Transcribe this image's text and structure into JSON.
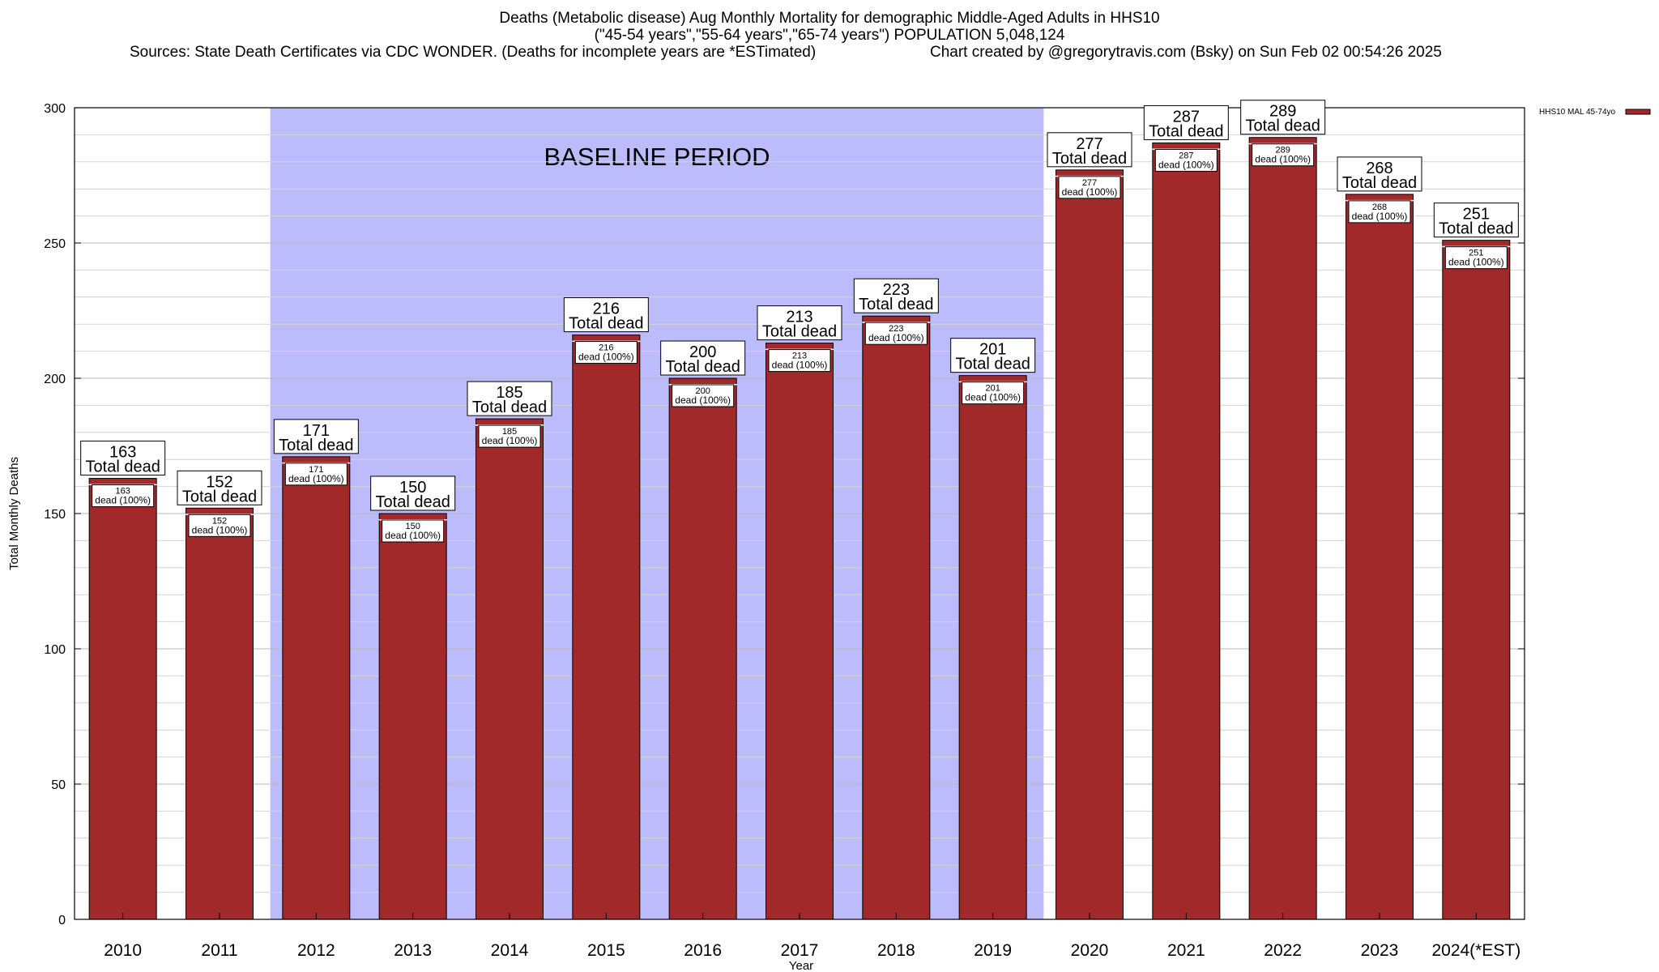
{
  "title": {
    "line1": "Deaths (Metabolic disease) Aug Monthly Mortality for demographic Middle-Aged Adults in HHS10",
    "line2": "(\"45-54 years\",\"55-64 years\",\"65-74 years\") POPULATION 5,048,124",
    "line3_source": "Sources: State Death Certificates via CDC WONDER. (Deaths for incomplete years are *ESTimated)",
    "line3_credit": "Chart created by @gregorytravis.com (Bsky) on Sun Feb 02 00:54:26 2025"
  },
  "chart_data": {
    "type": "bar",
    "xlabel": "Year",
    "ylabel": "Total Monthly Deaths",
    "ylim": [
      0,
      300
    ],
    "yticks": [
      0,
      50,
      100,
      150,
      200,
      250,
      300
    ],
    "categories": [
      "2010",
      "2011",
      "2012",
      "2013",
      "2014",
      "2015",
      "2016",
      "2017",
      "2018",
      "2019",
      "2020",
      "2021",
      "2022",
      "2023",
      "2024(*EST)"
    ],
    "series": [
      {
        "name": "HHS10 MAL 45-74yo",
        "color": "#a2292a",
        "values": [
          163,
          152,
          171,
          150,
          185,
          216,
          200,
          213,
          223,
          201,
          277,
          287,
          289,
          268,
          251
        ]
      }
    ],
    "top_label_suffix": "Total dead",
    "inner_label_suffix": "dead (100%)",
    "baseline_region": {
      "label": "BASELINE PERIOD",
      "from": "2012",
      "to": "2019",
      "color": "#bcbcfc"
    },
    "grid": true,
    "legend_position": "top-right"
  }
}
